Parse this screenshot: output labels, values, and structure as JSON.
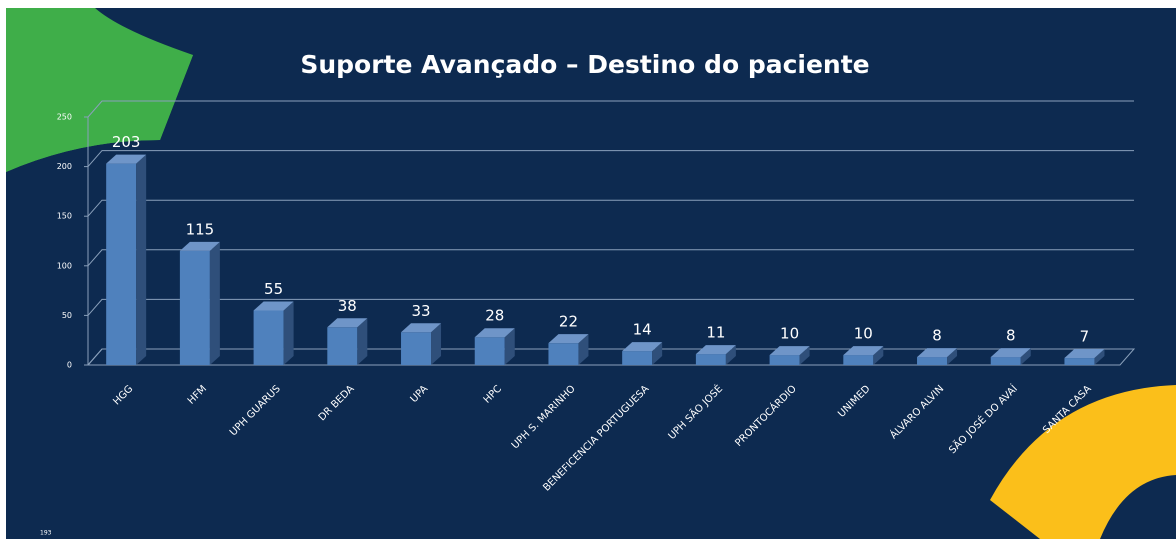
{
  "chart_data": {
    "type": "bar3d",
    "title": "Suporte Avançado – Destino do paciente",
    "categories": [
      "HGG",
      "HFM",
      "UPH GUARUS",
      "DR BEDA",
      "UPA",
      "HPC",
      "UPH S. MARINHO",
      "BENEFICENCIA PORTUGUESA",
      "UPH SÃO JOSÉ",
      "PRONTOCÁRDIO",
      "UNIMED",
      "ÁLVARO ALVIN",
      "SÃO JOSÉ DO AVAÍ",
      "SANTA CASA"
    ],
    "values": [
      203,
      115,
      55,
      38,
      33,
      28,
      22,
      14,
      11,
      10,
      10,
      8,
      8,
      7
    ],
    "color": "#4f81bd",
    "ylim": [
      0,
      250
    ],
    "yticks": [
      0,
      50,
      100,
      150,
      200,
      250
    ],
    "grid": true
  },
  "footer": "193"
}
